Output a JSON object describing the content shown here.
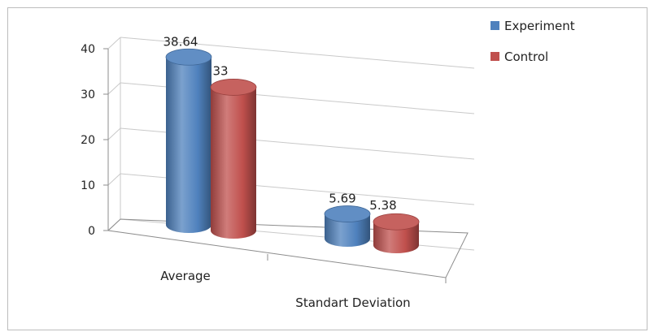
{
  "chart_data": {
    "type": "bar",
    "style": "3d-cylinder",
    "categories": [
      "Average",
      "Standart Deviation"
    ],
    "series": [
      {
        "name": "Experiment",
        "values": [
          38.64,
          5.69
        ],
        "labels": [
          "38.64",
          "5.69"
        ],
        "color": "#4f81bd"
      },
      {
        "name": "Control",
        "values": [
          33,
          5.38
        ],
        "labels": [
          "33",
          "5.38"
        ],
        "color": "#c0504d"
      }
    ],
    "ylim": [
      0,
      40
    ],
    "yticks": [
      0,
      10,
      20,
      30,
      40
    ],
    "ytick_labels": [
      "0",
      "10",
      "20",
      "30",
      "40"
    ],
    "grid": true,
    "legend_position": "top-right",
    "colors": {
      "frame_border": "#bdbdbd",
      "grid": "#c9c9c9",
      "axis": "#8c8c8c"
    }
  }
}
